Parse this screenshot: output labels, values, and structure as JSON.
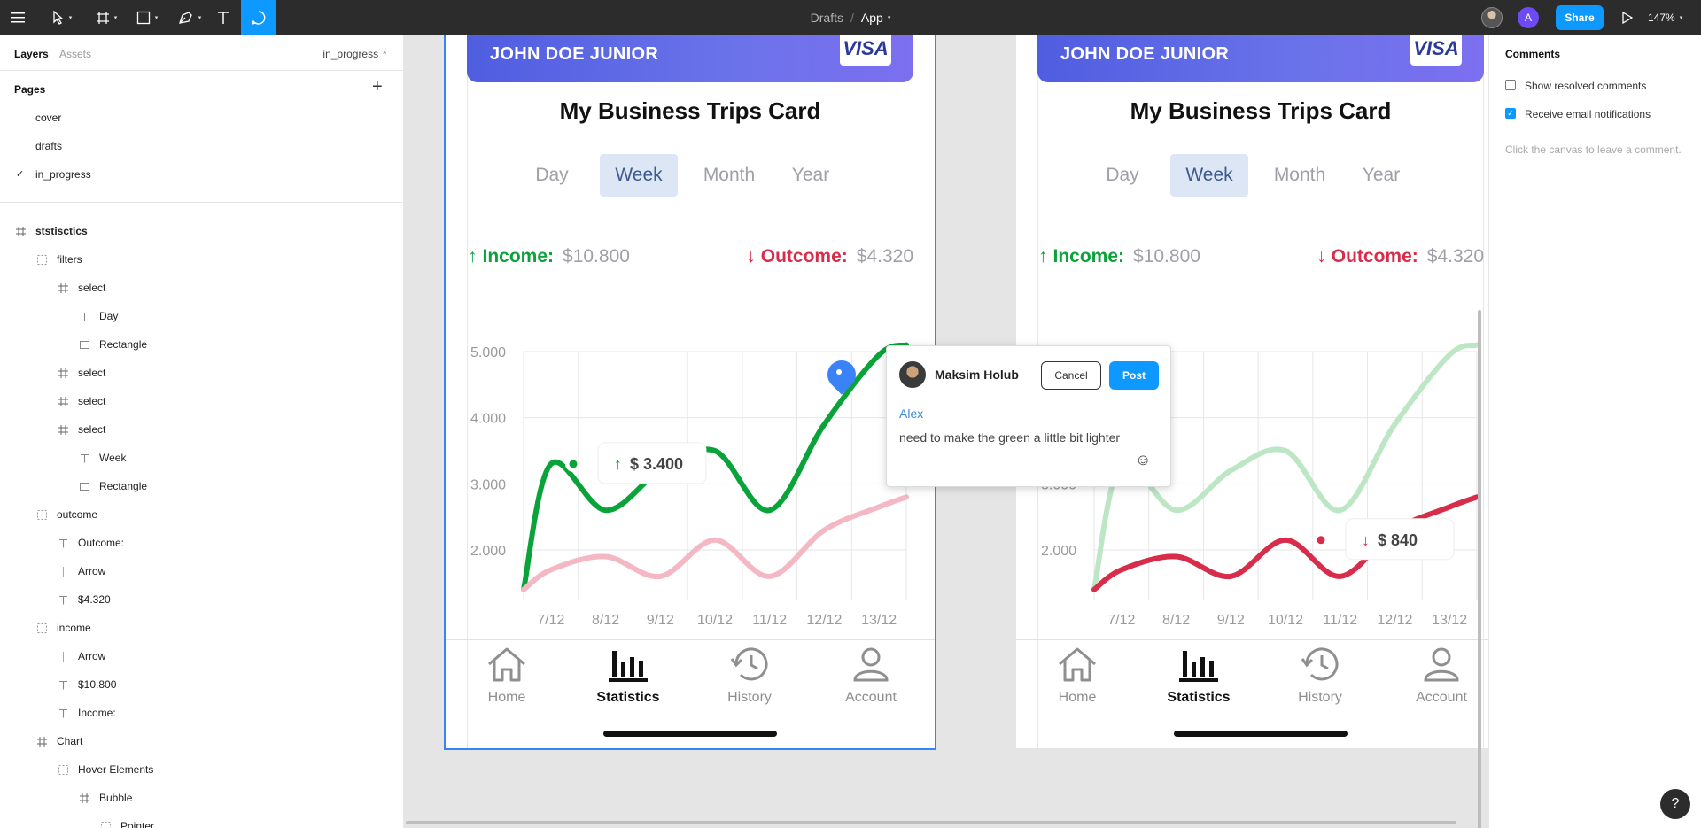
{
  "toolbar": {
    "breadcrumb_folder": "Drafts",
    "breadcrumb_sep": "/",
    "file_name": "App",
    "avatar_letter": "A",
    "share_label": "Share",
    "zoom": "147%",
    "caret": "▾"
  },
  "left_panel": {
    "tab_layers": "Layers",
    "tab_assets": "Assets",
    "current_page": "in_progress",
    "pages_header": "Pages",
    "add_symbol": "+",
    "pages": [
      "cover",
      "drafts",
      "in_progress"
    ],
    "check_symbol": "✓",
    "layers": [
      {
        "name": "ststisctics",
        "icon": "frame",
        "level": 0
      },
      {
        "name": "filters",
        "icon": "group",
        "level": 1
      },
      {
        "name": "select",
        "icon": "frame",
        "level": 2
      },
      {
        "name": "Day",
        "icon": "text",
        "level": 3
      },
      {
        "name": "Rectangle",
        "icon": "rect",
        "level": 3
      },
      {
        "name": "select",
        "icon": "frame",
        "level": 2
      },
      {
        "name": "select",
        "icon": "frame",
        "level": 2
      },
      {
        "name": "select",
        "icon": "frame",
        "level": 2
      },
      {
        "name": "Week",
        "icon": "text",
        "level": 3
      },
      {
        "name": "Rectangle",
        "icon": "rect",
        "level": 3
      },
      {
        "name": "outcome",
        "icon": "group",
        "level": 1
      },
      {
        "name": "Outcome:",
        "icon": "text",
        "level": 2
      },
      {
        "name": "Arrow",
        "icon": "line",
        "level": 2
      },
      {
        "name": "$4.320",
        "icon": "text",
        "level": 2
      },
      {
        "name": "income",
        "icon": "group",
        "level": 1
      },
      {
        "name": "Arrow",
        "icon": "line",
        "level": 2
      },
      {
        "name": "$10.800",
        "icon": "text",
        "level": 2
      },
      {
        "name": "Income:",
        "icon": "text",
        "level": 2
      },
      {
        "name": "Chart",
        "icon": "frame",
        "level": 1
      },
      {
        "name": "Hover Elements",
        "icon": "group",
        "level": 2
      },
      {
        "name": "Bubble",
        "icon": "frame",
        "level": 3
      },
      {
        "name": "Pointer",
        "icon": "group",
        "level": 4
      }
    ]
  },
  "frame": {
    "card_holder": "JOHN DOE JUNIOR",
    "card_brand": "VISA",
    "title": "My Business Trips Card",
    "periods": [
      "Day",
      "Week",
      "Month",
      "Year"
    ],
    "active_period": "Week",
    "income_label": "Income:",
    "income_value": "$10.800",
    "outcome_label": "Outcome:",
    "outcome_value": "$4.320",
    "nav": [
      "Home",
      "Statistics",
      "History",
      "Account"
    ],
    "active_nav": "Statistics"
  },
  "chart_data": [
    {
      "type": "line",
      "x": [
        "7/12",
        "8/12",
        "9/12",
        "10/12",
        "11/12",
        "12/12",
        "13/12"
      ],
      "y_ticks": [
        "5.000",
        "4.000",
        "3.000",
        "2.000"
      ],
      "ylim": [
        1250,
        5000
      ],
      "series": [
        {
          "name": "Income",
          "color": "#0aa33a",
          "values": [
            3300,
            2600,
            3200,
            3500,
            2600,
            3900,
            4950
          ]
        },
        {
          "name": "Outcome",
          "color": "#f3b8c4",
          "values": [
            1700,
            1900,
            1600,
            2150,
            1600,
            2300,
            2650
          ]
        }
      ],
      "tooltip": {
        "label": "$ 3.400",
        "series": "Income"
      }
    },
    {
      "type": "line",
      "x": [
        "7/12",
        "8/12",
        "9/12",
        "10/12",
        "11/12",
        "12/12",
        "13/12"
      ],
      "y_ticks": [
        "5.000",
        "4.000",
        "3.000",
        "2.000"
      ],
      "ylim": [
        1250,
        5000
      ],
      "series": [
        {
          "name": "Income",
          "color": "#bde6c4",
          "values": [
            3300,
            2600,
            3200,
            3500,
            2600,
            3900,
            4950
          ]
        },
        {
          "name": "Outcome",
          "color": "#d72c4a",
          "values": [
            1700,
            1900,
            1600,
            2150,
            1600,
            2300,
            2650
          ]
        }
      ],
      "tooltip": {
        "label": "$ 840",
        "series": "Outcome"
      }
    }
  ],
  "comment": {
    "user": "Maksim Holub",
    "cancel_label": "Cancel",
    "post_label": "Post",
    "mention": "Alex",
    "text": "need to make the green a little bit lighter",
    "emoji": "☺"
  },
  "right_panel": {
    "title": "Comments",
    "show_resolved": "Show resolved comments",
    "email_notifications": "Receive email notifications",
    "hint": "Click the canvas to leave a comment.",
    "check_symbol": "✓"
  },
  "help_label": "?"
}
